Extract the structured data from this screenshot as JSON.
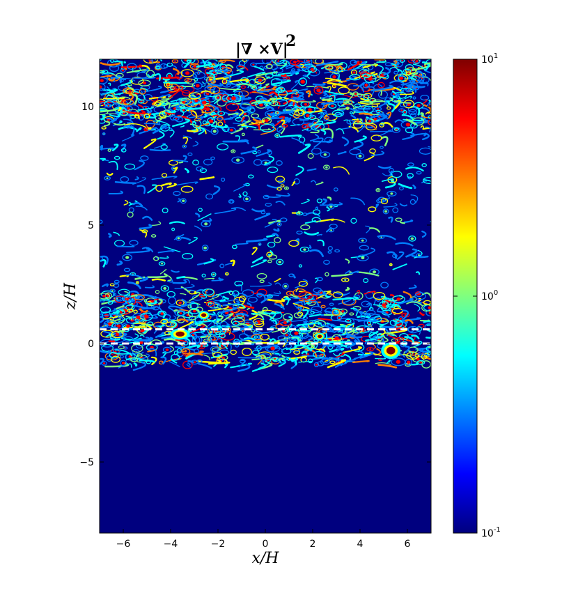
{
  "chart_data": {
    "type": "heatmap",
    "title": "|∇ ×V|",
    "title_superscript": "2",
    "xlabel": "x/H",
    "ylabel": "z/H",
    "xlim": [
      -7,
      7
    ],
    "ylim": [
      -8,
      12
    ],
    "x_ticks": [
      -6,
      -4,
      -2,
      0,
      2,
      4,
      6
    ],
    "x_tick_labels": [
      "−6",
      "−4",
      "−2",
      "0",
      "2",
      "4",
      "6"
    ],
    "y_ticks": [
      -5,
      0,
      5,
      10
    ],
    "y_tick_labels": [
      "−5",
      "0",
      "5",
      "10"
    ],
    "colorbar": {
      "scale": "log",
      "range": [
        0.1,
        10
      ],
      "colormap": "jet",
      "ticks": [
        0.1,
        1,
        10
      ],
      "tick_base": "10",
      "tick_exponents": [
        "-1",
        "0",
        "1"
      ]
    },
    "regions": [
      {
        "z_range": [
          -8,
          -0.9
        ],
        "level": 0.1,
        "description": "quiescent, uniform minimum"
      },
      {
        "z_range": [
          -0.9,
          2.2
        ],
        "level": "high",
        "description": "dense turbulent layer"
      },
      {
        "z_range": [
          2.2,
          9.0
        ],
        "level": "moderate",
        "description": "sparse eddies"
      },
      {
        "z_range": [
          9.0,
          12
        ],
        "level": "high",
        "description": "dense eddies"
      }
    ],
    "overlay_lines": [
      {
        "z": 0.6,
        "style": "dashed",
        "color": "#ffffff"
      },
      {
        "z": 0.0,
        "style": "dashed",
        "color": "#ffffff"
      }
    ],
    "colors": {
      "background": "#00007f",
      "stops": [
        "#00007f",
        "#0000ff",
        "#007fff",
        "#00ffff",
        "#7fff7f",
        "#ffff00",
        "#ff7f00",
        "#ff0000",
        "#7f0000"
      ]
    }
  }
}
